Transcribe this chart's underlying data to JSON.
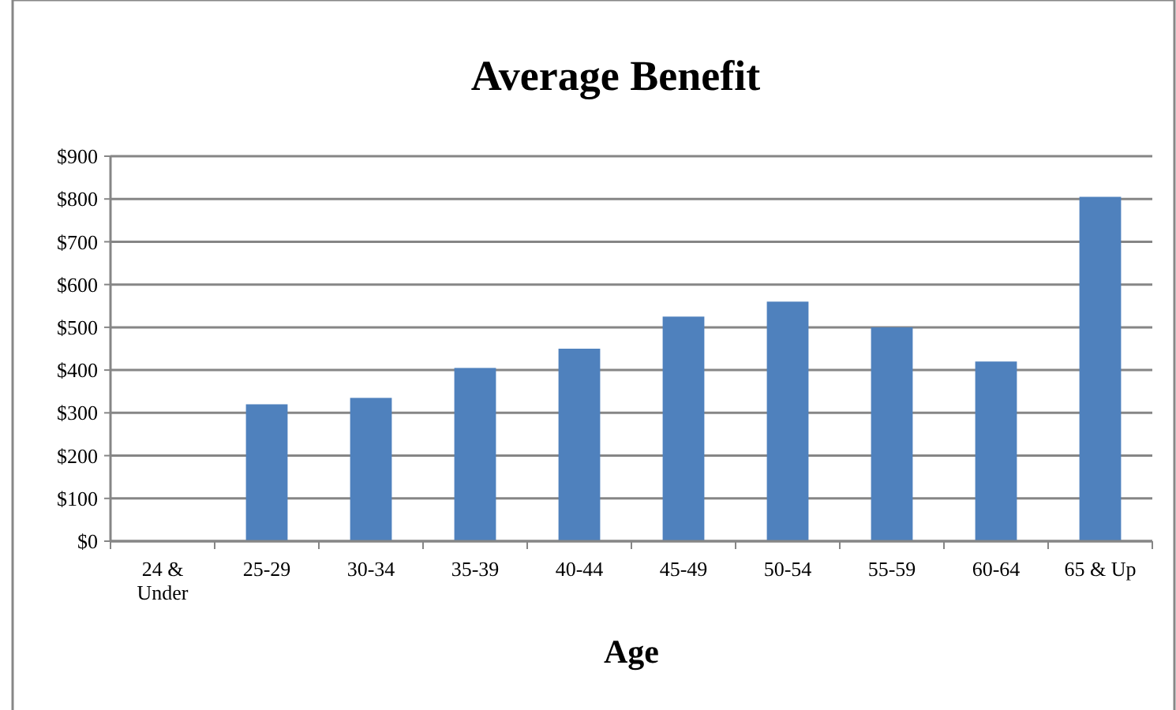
{
  "chart_data": {
    "type": "bar",
    "title": "Average Benefit",
    "xlabel": "Age",
    "categories": [
      "24 & Under",
      "25-29",
      "30-34",
      "35-39",
      "40-44",
      "45-49",
      "50-54",
      "55-59",
      "60-64",
      "65 & Up"
    ],
    "values": [
      null,
      320,
      335,
      405,
      450,
      525,
      560,
      500,
      420,
      805
    ],
    "color": "#4f81bd",
    "ylim": [
      0,
      900
    ],
    "yticks": [
      {
        "value": 0,
        "label": "$0"
      },
      {
        "value": 100,
        "label": "$100"
      },
      {
        "value": 200,
        "label": "$200"
      },
      {
        "value": 300,
        "label": "$300"
      },
      {
        "value": 400,
        "label": "$400"
      },
      {
        "value": 500,
        "label": "$500"
      },
      {
        "value": 600,
        "label": "$600"
      },
      {
        "value": 700,
        "label": "$700"
      },
      {
        "value": 800,
        "label": "$800"
      },
      {
        "value": 900,
        "label": "$900"
      }
    ],
    "grid": "y"
  }
}
